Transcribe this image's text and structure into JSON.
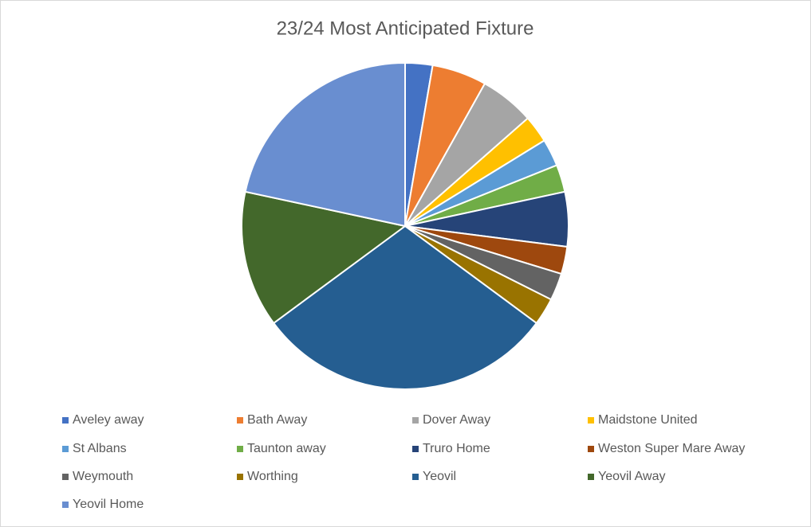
{
  "chart_data": {
    "type": "pie",
    "title": "23/24 Most Anticipated Fixture",
    "categories": [
      "Aveley away",
      "Bath Away",
      "Dover Away",
      "Maidstone United",
      "St Albans",
      "Taunton away",
      "Truro Home",
      "Weston Super Mare Away",
      "Weymouth",
      "Worthing",
      "Yeovil",
      "Yeovil Away",
      "Yeovil Home"
    ],
    "values": [
      1,
      2,
      2,
      1,
      1,
      1,
      2,
      1,
      1,
      1,
      11,
      5,
      8
    ],
    "colors": [
      "#4472c4",
      "#ed7d31",
      "#a5a5a5",
      "#ffc000",
      "#5b9bd5",
      "#70ad47",
      "#264478",
      "#9e480e",
      "#636363",
      "#997300",
      "#255e91",
      "#43682b",
      "#698ed0"
    ],
    "legend": "bottom"
  }
}
